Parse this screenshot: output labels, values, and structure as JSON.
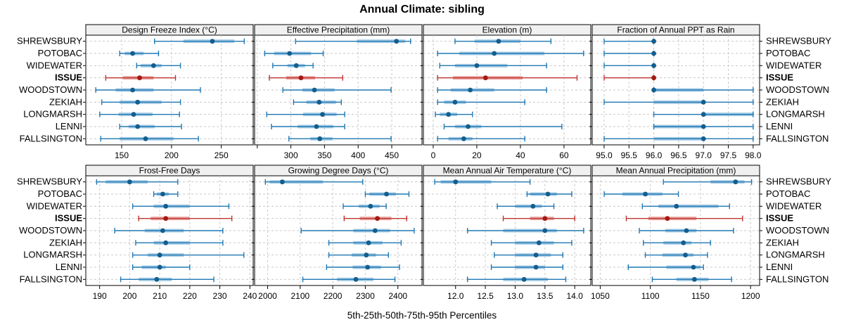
{
  "chart_data": {
    "type": "dotplot",
    "title": "Annual Climate: sibling",
    "caption": "5th-25th-50th-75th-95th Percentiles",
    "percentiles": [
      5,
      25,
      50,
      75,
      95
    ],
    "categories": [
      "SHREWSBURY",
      "POTOBAC",
      "WIDEWATER",
      "ISSUE",
      "WOODSTOWN",
      "ZEKIAH",
      "LONGMARSH",
      "LENNI",
      "FALLSINGTON"
    ],
    "highlight_category": "ISSUE",
    "legend_position": "none",
    "grid": "dashed",
    "colors": {
      "normal": {
        "line": "#1f78b4",
        "band": "#a5cbe5",
        "dot": "#135e8d"
      },
      "highlight": {
        "line": "#bf3430",
        "band": "#e9a39e",
        "dot": "#a11a14"
      },
      "grid": "#c9c9c9",
      "strip_bg": "#f0f0f0",
      "border": "#000000"
    },
    "panels": [
      {
        "title": "Design Freeze Index (°C)",
        "xlim": [
          114,
          282
        ],
        "tick_values": [
          150,
          200,
          250
        ],
        "tick_labels": [
          "150",
          "200",
          "250"
        ],
        "rows": [
          [
            183,
            212,
            241,
            263,
            273
          ],
          [
            148,
            153,
            161,
            172,
            187
          ],
          [
            165,
            169,
            182,
            190,
            209
          ],
          [
            134,
            151,
            168,
            182,
            204
          ],
          [
            124,
            144,
            161,
            182,
            229
          ],
          [
            130,
            148,
            166,
            190,
            209
          ],
          [
            128,
            147,
            162,
            181,
            208
          ],
          [
            148,
            157,
            166,
            183,
            210
          ],
          [
            129,
            148,
            174,
            202,
            227
          ]
        ]
      },
      {
        "title": "Effective Precipitation (mm)",
        "xlim": [
          246,
          495
        ],
        "tick_values": [
          250,
          300,
          350,
          400,
          450
        ],
        "tick_labels": [
          "",
          "300",
          "350",
          "400",
          "450"
        ],
        "rows": [
          [
            307,
            398,
            457,
            470,
            478
          ],
          [
            261,
            275,
            298,
            330,
            348
          ],
          [
            273,
            295,
            308,
            321,
            333
          ],
          [
            268,
            293,
            315,
            336,
            377
          ],
          [
            288,
            317,
            335,
            365,
            449
          ],
          [
            304,
            323,
            342,
            367,
            375
          ],
          [
            264,
            318,
            347,
            368,
            380
          ],
          [
            271,
            310,
            338,
            363,
            380
          ],
          [
            297,
            329,
            343,
            362,
            449
          ]
        ]
      },
      {
        "title": "Elevation (m)",
        "xlim": [
          -4.5,
          72.3
        ],
        "tick_values": [
          0,
          20,
          40,
          60
        ],
        "tick_labels": [
          "0",
          "20",
          "40",
          "60"
        ],
        "rows": [
          [
            10,
            19,
            30,
            40,
            54
          ],
          [
            2,
            12,
            28,
            51,
            69
          ],
          [
            3,
            10,
            20,
            34,
            52
          ],
          [
            2,
            9,
            24,
            41,
            66
          ],
          [
            2,
            8,
            17,
            28,
            52
          ],
          [
            2,
            5,
            10,
            15,
            42
          ],
          [
            1,
            3,
            7,
            11,
            18
          ],
          [
            5,
            10,
            16,
            22,
            59
          ],
          [
            2,
            7,
            14,
            18,
            42
          ]
        ]
      },
      {
        "title": "Fraction of Annual PPT as Rain",
        "xlim": [
          94.76,
          98.13
        ],
        "tick_values": [
          95.0,
          95.5,
          96.0,
          96.5,
          97.0,
          97.5,
          98.0
        ],
        "tick_labels": [
          "95.0",
          "95.5",
          "96.0",
          "96.5",
          "97.0",
          "97.5",
          "98.0"
        ],
        "rows": [
          [
            95,
            96,
            96,
            96,
            96
          ],
          [
            95,
            96,
            96,
            96,
            96
          ],
          [
            95,
            96,
            96,
            96,
            96
          ],
          [
            95,
            96,
            96,
            96,
            96
          ],
          [
            96,
            96,
            96,
            97,
            98
          ],
          [
            95,
            96,
            97,
            97,
            98
          ],
          [
            96,
            97,
            97,
            98,
            98
          ],
          [
            96,
            96,
            97,
            97,
            98
          ],
          [
            95,
            96,
            97,
            97,
            98
          ]
        ]
      },
      {
        "title": "Frost-Free Days",
        "xlim": [
          185.4,
          241.1
        ],
        "tick_values": [
          190,
          200,
          210,
          220,
          230,
          240
        ],
        "tick_labels": [
          "190",
          "200",
          "210",
          "220",
          "230",
          "240"
        ],
        "rows": [
          [
            189,
            192,
            200,
            206,
            216
          ],
          [
            208,
            209,
            211,
            213,
            216
          ],
          [
            201,
            208,
            212,
            220,
            233
          ],
          [
            203,
            207,
            212,
            220,
            234
          ],
          [
            195,
            205,
            211,
            218,
            231
          ],
          [
            202,
            208,
            212,
            220,
            231
          ],
          [
            201,
            206,
            210,
            218,
            238
          ],
          [
            201,
            204,
            210,
            212,
            220
          ],
          [
            197,
            203,
            209,
            214,
            228
          ]
        ]
      },
      {
        "title": "Growing Degree Days (°C)",
        "xlim": [
          1960,
          2474
        ],
        "tick_values": [
          2000,
          2100,
          2200,
          2300,
          2400
        ],
        "tick_labels": [
          "2000",
          "2100",
          "2200",
          "2300",
          "2400"
        ],
        "rows": [
          [
            1993,
            2006,
            2045,
            2170,
            2292
          ],
          [
            2300,
            2312,
            2365,
            2394,
            2434
          ],
          [
            2232,
            2280,
            2316,
            2344,
            2364
          ],
          [
            2235,
            2283,
            2337,
            2380,
            2427
          ],
          [
            2103,
            2263,
            2330,
            2376,
            2450
          ],
          [
            2188,
            2263,
            2310,
            2353,
            2410
          ],
          [
            2188,
            2258,
            2303,
            2333,
            2371
          ],
          [
            2181,
            2261,
            2307,
            2348,
            2405
          ],
          [
            2108,
            2213,
            2271,
            2325,
            2391
          ]
        ]
      },
      {
        "title": "Mean Annual Air Temperature (°C)",
        "xlim": [
          11.46,
          14.27
        ],
        "tick_values": [
          12.0,
          12.5,
          13.0,
          13.5,
          14.0
        ],
        "tick_labels": [
          "12.0",
          "12.5",
          "13.0",
          "13.5",
          "14.0"
        ],
        "rows": [
          [
            11.65,
            11.75,
            12.0,
            12.6,
            13.25
          ],
          [
            13.2,
            13.25,
            13.55,
            13.7,
            13.95
          ],
          [
            12.7,
            13.0,
            13.3,
            13.45,
            13.65
          ],
          [
            12.8,
            13.25,
            13.5,
            13.65,
            14.0
          ],
          [
            12.2,
            12.8,
            13.5,
            13.7,
            14.15
          ],
          [
            12.6,
            13.0,
            13.4,
            13.65,
            13.95
          ],
          [
            12.65,
            13.0,
            13.35,
            13.6,
            13.8
          ],
          [
            12.6,
            13.0,
            13.35,
            13.5,
            13.8
          ],
          [
            12.2,
            12.8,
            13.15,
            13.55,
            13.85
          ]
        ]
      },
      {
        "title": "Mean Annual Precipitation (mm)",
        "xlim": [
          1042,
          1209
        ],
        "tick_values": [
          1050,
          1100,
          1150,
          1200
        ],
        "tick_labels": [
          "1050",
          "1100",
          "1150",
          "1200"
        ],
        "rows": [
          [
            1113,
            1160,
            1185,
            1194,
            1201
          ],
          [
            1054,
            1072,
            1095,
            1112,
            1128
          ],
          [
            1092,
            1108,
            1126,
            1168,
            1179
          ],
          [
            1076,
            1098,
            1117,
            1146,
            1192
          ],
          [
            1089,
            1115,
            1136,
            1146,
            1183
          ],
          [
            1093,
            1113,
            1133,
            1141,
            1160
          ],
          [
            1095,
            1112,
            1135,
            1143,
            1157
          ],
          [
            1078,
            1116,
            1143,
            1150,
            1153
          ],
          [
            1102,
            1126,
            1144,
            1158,
            1181
          ]
        ]
      }
    ]
  }
}
